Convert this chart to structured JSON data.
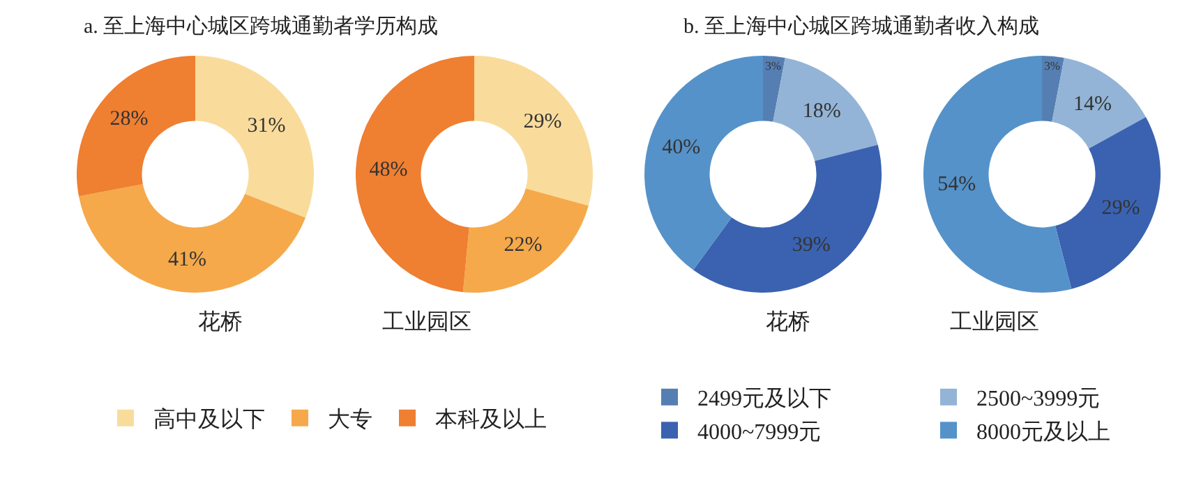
{
  "chart_data": [
    {
      "type": "donut",
      "title": "a. 至上海中心城区跨城通勤者学历构成",
      "categories": [
        "高中及以下",
        "大专",
        "本科及以上"
      ],
      "colors": [
        "#f9dc9c",
        "#f5a94a",
        "#ef7f31"
      ],
      "legend": "bottom",
      "series": [
        {
          "name": "花桥",
          "values": [
            31,
            41,
            28
          ],
          "value_labels": [
            "31%",
            "41%",
            "28%"
          ]
        },
        {
          "name": "工业园区",
          "values": [
            29,
            22,
            48
          ],
          "value_labels": [
            "29%",
            "22%",
            "48%"
          ]
        }
      ]
    },
    {
      "type": "donut",
      "title": "b. 至上海中心城区跨城通勤者收入构成",
      "categories": [
        "2499元及以下",
        "2500~3999元",
        "4000~7999元",
        "8000元及以上"
      ],
      "colors": [
        "#557fb3",
        "#93b4d6",
        "#3a62b0",
        "#5592c9"
      ],
      "legend": "bottom",
      "series": [
        {
          "name": "花桥",
          "values": [
            3,
            18,
            39,
            40
          ],
          "value_labels": [
            "3%",
            "18%",
            "39%",
            "40%"
          ]
        },
        {
          "name": "工业园区",
          "values": [
            3,
            14,
            29,
            54
          ],
          "value_labels": [
            "3%",
            "14%",
            "29%",
            "54%"
          ]
        }
      ]
    }
  ]
}
